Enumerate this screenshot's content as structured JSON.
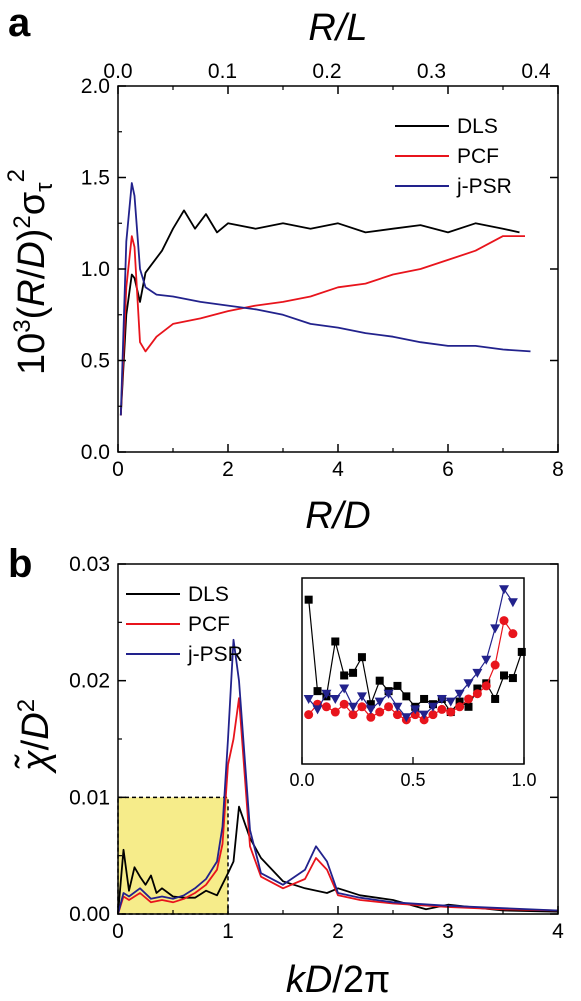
{
  "chart_data": [
    {
      "panel": "a",
      "type": "line",
      "xlabel": "R/D",
      "x2label": "R/L",
      "xlim": [
        0,
        8
      ],
      "x2lim": [
        0,
        0.4
      ],
      "ylim": [
        0.0,
        2.0
      ],
      "xticks": [
        "0",
        "2",
        "4",
        "6",
        "8"
      ],
      "x2ticks": [
        "0.0",
        "0.1",
        "0.2",
        "0.3",
        "0.4"
      ],
      "yticks": [
        "0.0",
        "0.5",
        "1.0",
        "1.5",
        "2.0"
      ],
      "legend_position": "top-right",
      "series": [
        {
          "name": "DLS",
          "color": "#000000",
          "x": [
            0.05,
            0.15,
            0.25,
            0.3,
            0.4,
            0.5,
            0.6,
            0.8,
            1.0,
            1.2,
            1.4,
            1.6,
            1.8,
            2.0,
            2.5,
            3.0,
            3.5,
            4.0,
            4.5,
            5.0,
            5.5,
            6.0,
            6.5,
            7.0,
            7.3
          ],
          "y": [
            0.2,
            0.75,
            0.97,
            0.95,
            0.82,
            0.98,
            1.02,
            1.1,
            1.22,
            1.32,
            1.22,
            1.3,
            1.2,
            1.25,
            1.22,
            1.25,
            1.22,
            1.25,
            1.2,
            1.22,
            1.24,
            1.2,
            1.25,
            1.22,
            1.2
          ]
        },
        {
          "name": "PCF",
          "color": "#e8141c",
          "x": [
            0.05,
            0.15,
            0.25,
            0.3,
            0.4,
            0.5,
            0.7,
            1.0,
            1.5,
            2.0,
            2.5,
            3.0,
            3.5,
            4.0,
            4.5,
            5.0,
            5.5,
            6.0,
            6.5,
            7.0,
            7.4
          ],
          "y": [
            0.2,
            0.9,
            1.18,
            1.12,
            0.6,
            0.55,
            0.63,
            0.7,
            0.73,
            0.77,
            0.8,
            0.82,
            0.85,
            0.9,
            0.92,
            0.97,
            1.0,
            1.05,
            1.1,
            1.18,
            1.18
          ]
        },
        {
          "name": "j-PSR",
          "color": "#22228c",
          "x": [
            0.05,
            0.15,
            0.25,
            0.3,
            0.4,
            0.5,
            0.7,
            1.0,
            1.5,
            2.0,
            2.5,
            3.0,
            3.5,
            4.0,
            4.5,
            5.0,
            5.5,
            6.0,
            6.5,
            7.0,
            7.5
          ],
          "y": [
            0.2,
            1.15,
            1.47,
            1.4,
            1.0,
            0.9,
            0.86,
            0.85,
            0.82,
            0.8,
            0.78,
            0.75,
            0.7,
            0.68,
            0.65,
            0.63,
            0.6,
            0.58,
            0.58,
            0.56,
            0.55
          ]
        }
      ]
    },
    {
      "panel": "b",
      "type": "line",
      "xlabel": "kD/2π",
      "xlim": [
        0,
        4
      ],
      "ylim": [
        0.0,
        0.03
      ],
      "xticks": [
        "0",
        "1",
        "2",
        "3",
        "4"
      ],
      "yticks": [
        "0.00",
        "0.01",
        "0.02",
        "0.03"
      ],
      "legend_position": "top-left",
      "highlight_box": {
        "x": [
          0,
          1
        ],
        "y": [
          0,
          0.01
        ],
        "color": "#f6ec8a"
      },
      "series": [
        {
          "name": "DLS",
          "color": "#000000",
          "x": [
            0.0,
            0.05,
            0.1,
            0.15,
            0.2,
            0.25,
            0.3,
            0.35,
            0.4,
            0.5,
            0.6,
            0.7,
            0.8,
            0.9,
            1.0,
            1.05,
            1.1,
            1.2,
            1.3,
            1.5,
            1.7,
            1.9,
            2.0,
            2.2,
            2.5,
            2.8,
            3.0,
            3.5,
            4.0
          ],
          "y": [
            0.0,
            0.0055,
            0.002,
            0.004,
            0.0032,
            0.0025,
            0.0033,
            0.0018,
            0.0022,
            0.0015,
            0.0014,
            0.0014,
            0.002,
            0.0016,
            0.0035,
            0.0045,
            0.0092,
            0.0065,
            0.0048,
            0.0028,
            0.0022,
            0.0018,
            0.0022,
            0.0016,
            0.0012,
            0.0004,
            0.0008,
            0.0003,
            0.0002
          ]
        },
        {
          "name": "PCF",
          "color": "#e8141c",
          "x": [
            0.0,
            0.05,
            0.1,
            0.2,
            0.3,
            0.4,
            0.5,
            0.6,
            0.7,
            0.8,
            0.9,
            0.95,
            1.0,
            1.05,
            1.1,
            1.2,
            1.3,
            1.5,
            1.7,
            1.8,
            1.9,
            2.0,
            2.2,
            2.5,
            3.0,
            3.5,
            4.0
          ],
          "y": [
            0.0,
            0.0015,
            0.0012,
            0.0018,
            0.001,
            0.0012,
            0.001,
            0.0013,
            0.0018,
            0.0025,
            0.0038,
            0.006,
            0.0128,
            0.015,
            0.0185,
            0.0058,
            0.0032,
            0.0022,
            0.003,
            0.0048,
            0.0038,
            0.0016,
            0.0012,
            0.0009,
            0.0006,
            0.0004,
            0.0003
          ]
        },
        {
          "name": "j-PSR",
          "color": "#22228c",
          "x": [
            0.0,
            0.05,
            0.1,
            0.2,
            0.3,
            0.4,
            0.5,
            0.6,
            0.7,
            0.8,
            0.9,
            0.95,
            1.0,
            1.05,
            1.1,
            1.2,
            1.3,
            1.5,
            1.7,
            1.8,
            1.9,
            2.0,
            2.2,
            2.5,
            3.0,
            3.5,
            4.0
          ],
          "y": [
            0.0,
            0.0018,
            0.0015,
            0.0022,
            0.0013,
            0.0015,
            0.0013,
            0.0016,
            0.0022,
            0.003,
            0.0045,
            0.0075,
            0.015,
            0.0235,
            0.02,
            0.0072,
            0.0035,
            0.0025,
            0.0038,
            0.0058,
            0.0045,
            0.0018,
            0.0014,
            0.001,
            0.0007,
            0.0005,
            0.0003
          ]
        }
      ],
      "inset": {
        "xlim": [
          0.0,
          1.0
        ],
        "xticks": [
          "0.0",
          "0.5",
          "1.0"
        ],
        "series": [
          {
            "name": "DLS",
            "color": "#000000",
            "marker": "square",
            "x": [
              0.03,
              0.07,
              0.11,
              0.15,
              0.19,
              0.23,
              0.27,
              0.31,
              0.35,
              0.39,
              0.43,
              0.47,
              0.51,
              0.55,
              0.59,
              0.63,
              0.67,
              0.71,
              0.75,
              0.79,
              0.83,
              0.87,
              0.91,
              0.95,
              0.99
            ],
            "y": [
              0.0056,
              0.0021,
              0.0019,
              0.004,
              0.0027,
              0.0028,
              0.0034,
              0.0016,
              0.0025,
              0.0021,
              0.0023,
              0.0019,
              0.0015,
              0.0018,
              0.0016,
              0.0018,
              0.0013,
              0.0017,
              0.0015,
              0.0022,
              0.0024,
              0.0018,
              0.0027,
              0.0026,
              0.0036
            ]
          },
          {
            "name": "PCF",
            "color": "#e8141c",
            "marker": "circle",
            "x": [
              0.03,
              0.07,
              0.11,
              0.15,
              0.19,
              0.23,
              0.27,
              0.31,
              0.35,
              0.39,
              0.43,
              0.47,
              0.51,
              0.55,
              0.59,
              0.63,
              0.67,
              0.71,
              0.75,
              0.79,
              0.83,
              0.87,
              0.91,
              0.95
            ],
            "y": [
              0.0012,
              0.0016,
              0.0015,
              0.0013,
              0.0016,
              0.0012,
              0.0015,
              0.0011,
              0.0013,
              0.0015,
              0.0012,
              0.001,
              0.0012,
              0.001,
              0.0012,
              0.0014,
              0.0013,
              0.0015,
              0.0018,
              0.002,
              0.0023,
              0.0031,
              0.0048,
              0.0043
            ]
          },
          {
            "name": "j-PSR",
            "color": "#22228c",
            "marker": "triangle-down",
            "x": [
              0.03,
              0.07,
              0.11,
              0.15,
              0.19,
              0.23,
              0.27,
              0.31,
              0.35,
              0.39,
              0.43,
              0.47,
              0.51,
              0.55,
              0.59,
              0.63,
              0.67,
              0.71,
              0.75,
              0.79,
              0.83,
              0.87,
              0.91,
              0.95
            ],
            "y": [
              0.0018,
              0.0014,
              0.002,
              0.0018,
              0.0022,
              0.0015,
              0.0019,
              0.0014,
              0.0017,
              0.002,
              0.0015,
              0.0011,
              0.0014,
              0.0012,
              0.0015,
              0.0018,
              0.0017,
              0.002,
              0.0024,
              0.0028,
              0.0033,
              0.0045,
              0.006,
              0.0055
            ]
          }
        ]
      }
    }
  ]
}
